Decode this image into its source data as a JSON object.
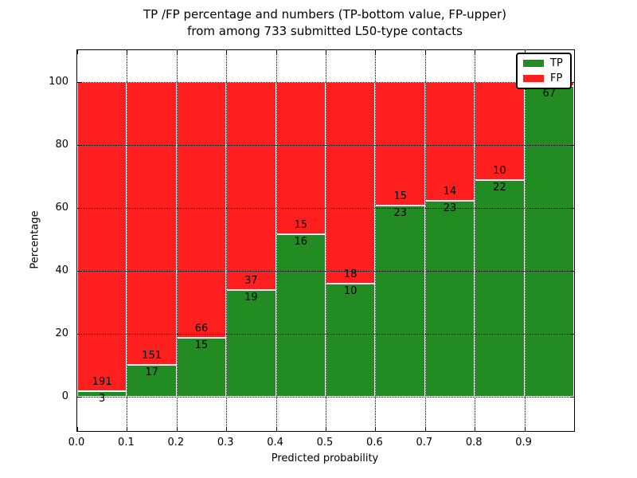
{
  "title": {
    "line1": "TP /FP percentage and numbers (TP-bottom value, FP-upper)",
    "line2": "from among 733 submitted L50-type contacts"
  },
  "axes": {
    "xlabel": "Predicted probability",
    "ylabel": "Percentage",
    "x_tick_labels": [
      "0.0",
      "0.1",
      "0.2",
      "0.3",
      "0.4",
      "0.5",
      "0.6",
      "0.7",
      "0.8",
      "0.9"
    ],
    "y_tick_labels": [
      "0",
      "20",
      "40",
      "60",
      "80",
      "100"
    ],
    "xlim": [
      0.0,
      1.0
    ],
    "ylim": [
      -11,
      110
    ]
  },
  "legend": {
    "position": "upper-right",
    "items": [
      {
        "label": "TP",
        "color": "#228b22"
      },
      {
        "label": "FP",
        "color": "#ff1f1f"
      }
    ]
  },
  "chart_data": {
    "type": "bar",
    "stacked": true,
    "normalized_to_percent": true,
    "title": "TP /FP percentage and numbers (TP-bottom value, FP-upper) from among 733 submitted L50-type contacts",
    "xlabel": "Predicted probability",
    "ylabel": "Percentage",
    "total_contacts": 733,
    "bin_width": 0.1,
    "bin_starts": [
      0.0,
      0.1,
      0.2,
      0.3,
      0.4,
      0.5,
      0.6,
      0.7,
      0.8,
      0.9
    ],
    "series": [
      {
        "name": "TP",
        "color": "#228b22",
        "counts": [
          3,
          17,
          15,
          19,
          16,
          10,
          23,
          23,
          22,
          67
        ]
      },
      {
        "name": "FP",
        "color": "#ff1f1f",
        "counts": [
          191,
          151,
          66,
          37,
          15,
          18,
          15,
          14,
          10,
          1
        ]
      }
    ],
    "tp_percent_of_bin": [
      1.5,
      10.1,
      18.5,
      33.9,
      51.6,
      35.7,
      60.5,
      62.2,
      68.8,
      98.5
    ],
    "grid": "dotted",
    "ylim": [
      -11,
      110
    ],
    "xlim": [
      0.0,
      1.0
    ],
    "legend_position": "upper-right"
  }
}
